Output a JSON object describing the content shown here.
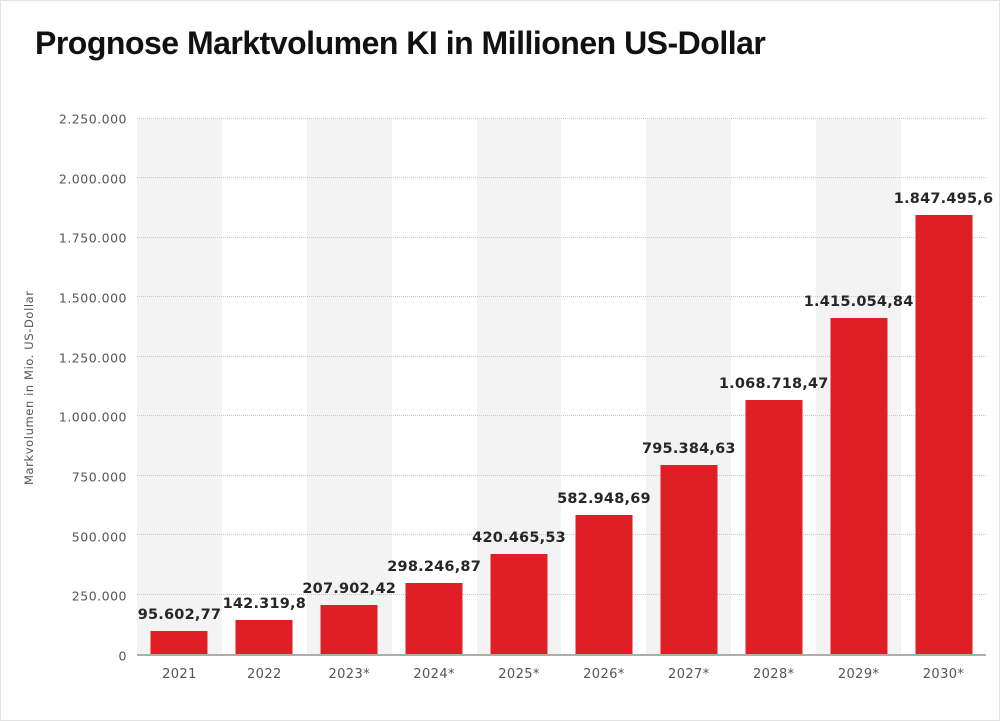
{
  "title": "Prognose Marktvolumen KI in Millionen US-Dollar",
  "chart_data": {
    "type": "bar",
    "title": "Prognose Marktvolumen KI in Millionen US-Dollar",
    "categories": [
      "2021",
      "2022",
      "2023*",
      "2024*",
      "2025*",
      "2026*",
      "2027*",
      "2028*",
      "2029*",
      "2030*"
    ],
    "values": [
      95602.77,
      142319.8,
      207902.42,
      298246.87,
      420465.53,
      582948.69,
      795384.63,
      1068718.47,
      1415054.84,
      1847495.6
    ],
    "value_labels": [
      "95.602,77",
      "142.319,8",
      "207.902,42",
      "298.246,87",
      "420.465,53",
      "582.948,69",
      "795.384,63",
      "1.068.718,47",
      "1.415.054,84",
      "1.847.495,6"
    ],
    "xlabel": "",
    "ylabel": "Markvolumen in Mio. US-Dollar",
    "ylim": [
      0,
      2250000
    ],
    "ytick_labels": [
      "0",
      "250.000",
      "500.000",
      "750.000",
      "1.000.000",
      "1.250.000",
      "1.500.000",
      "1.750.000",
      "2.000.000",
      "2.250.000"
    ],
    "grid": true,
    "legend": false,
    "bar_color": "#e01e26",
    "band_color": "#f3f3f3",
    "band_columns": "alternating-from-first"
  }
}
